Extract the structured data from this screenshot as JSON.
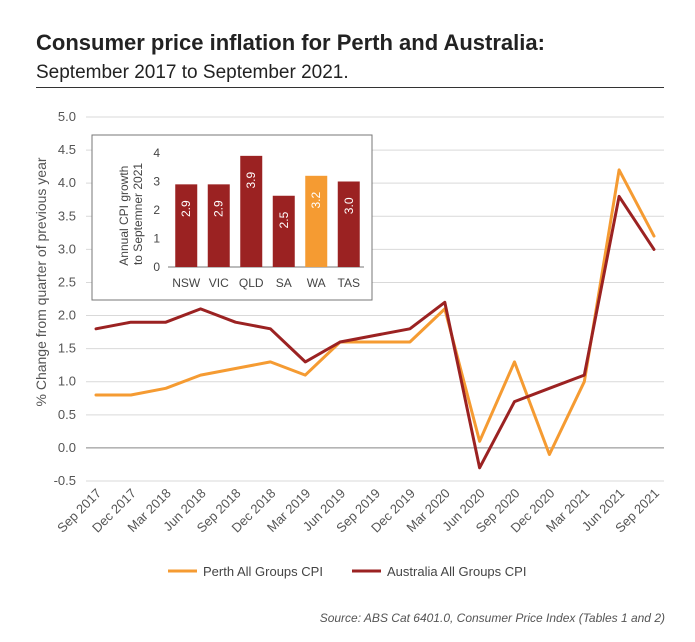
{
  "chart_data": [
    {
      "type": "line",
      "title": "Consumer price inflation for Perth and Australia:",
      "subtitle": "September 2017 to September 2021.",
      "xlabel": "",
      "ylabel": "% Change from quarter of previous year",
      "ylim": [
        -0.5,
        5.0
      ],
      "yticks": [
        "5.0",
        "4.5",
        "4.0",
        "3.5",
        "3.0",
        "2.5",
        "2.0",
        "1.5",
        "1.0",
        "0.5",
        "0.0",
        "-0.5"
      ],
      "categories": [
        "Sep 2017",
        "Dec 2017",
        "Mar 2018",
        "Jun 2018",
        "Sep 2018",
        "Dec 2018",
        "Mar 2019",
        "Jun 2019",
        "Sep 2019",
        "Dec 2019",
        "Mar 2020",
        "Jun 2020",
        "Sep 2020",
        "Dec 2020",
        "Mar 2021",
        "Jun 2021",
        "Sep 2021"
      ],
      "series": [
        {
          "name": "Perth All Groups CPI",
          "color": "#f59b32",
          "values": [
            0.8,
            0.8,
            0.9,
            1.1,
            1.2,
            1.3,
            1.1,
            1.6,
            1.6,
            1.6,
            2.1,
            0.1,
            1.3,
            -0.1,
            1.0,
            4.2,
            3.2
          ]
        },
        {
          "name": "Australia All Groups CPI",
          "color": "#9b2222",
          "values": [
            1.8,
            1.9,
            1.9,
            2.1,
            1.9,
            1.8,
            1.3,
            1.6,
            1.7,
            1.8,
            2.2,
            -0.3,
            0.7,
            0.9,
            1.1,
            3.8,
            3.0
          ]
        }
      ],
      "legend": "bottom"
    },
    {
      "type": "bar",
      "title": "",
      "ylabel": "Annual CPI growth to Septemner 2021",
      "ylim": [
        0,
        4
      ],
      "yticks": [
        "4",
        "3",
        "2",
        "1",
        "0"
      ],
      "categories": [
        "NSW",
        "VIC",
        "QLD",
        "SA",
        "WA",
        "TAS"
      ],
      "values": [
        2.9,
        2.9,
        3.9,
        2.5,
        3.2,
        3.0
      ],
      "labels": [
        "2.9",
        "2.9",
        "3.9",
        "2.5",
        "3.2",
        "3.0"
      ],
      "colors": [
        "#9b2222",
        "#9b2222",
        "#9b2222",
        "#9b2222",
        "#f59b32",
        "#9b2222"
      ]
    }
  ],
  "source": "Source: ABS Cat 6401.0, Consumer Price Index (Tables 1 and 2)"
}
